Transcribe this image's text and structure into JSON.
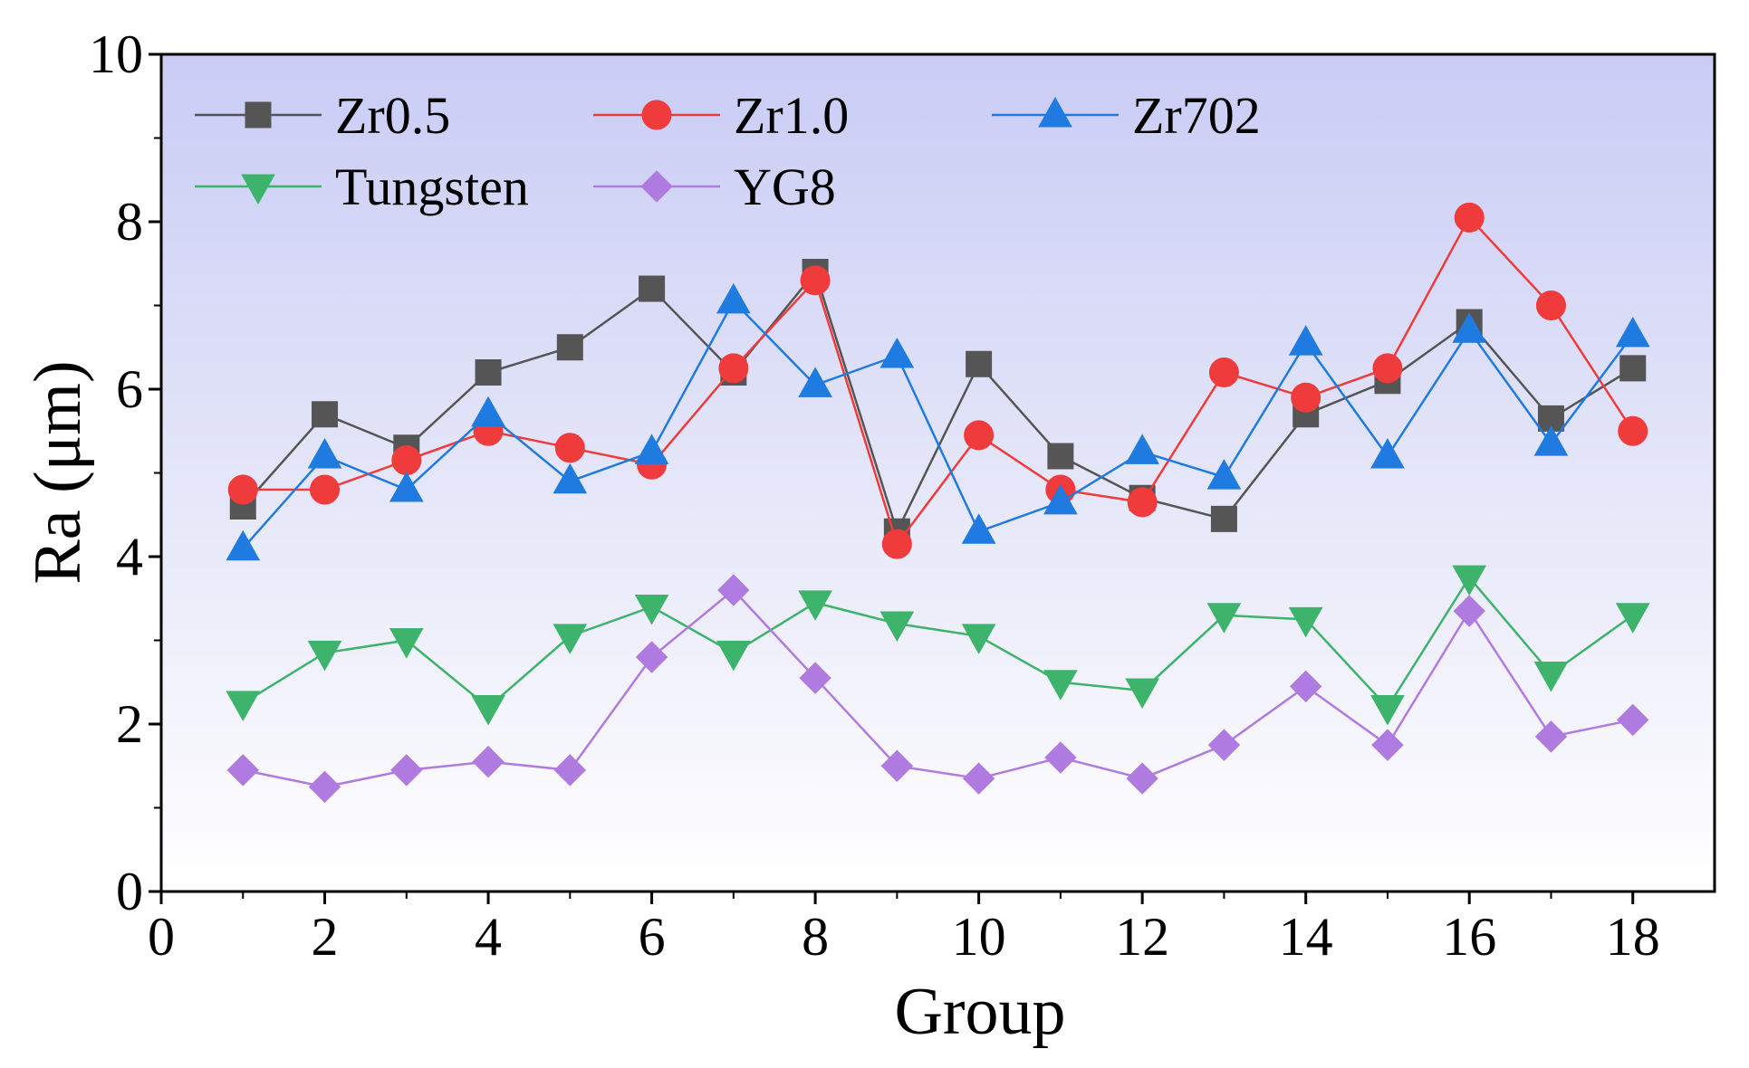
{
  "chart_data": {
    "type": "line",
    "title": "",
    "xlabel": "Group",
    "ylabel": "Ra (μm)",
    "xlim": [
      0,
      19
    ],
    "ylim": [
      0,
      10
    ],
    "xticks": [
      0,
      2,
      4,
      6,
      8,
      10,
      12,
      14,
      16,
      18
    ],
    "yticks": [
      0,
      2,
      4,
      6,
      8,
      10
    ],
    "grid": false,
    "legend_position": "top-left",
    "x": [
      1,
      2,
      3,
      4,
      5,
      6,
      7,
      8,
      9,
      10,
      11,
      12,
      13,
      14,
      15,
      16,
      17,
      18
    ],
    "series": [
      {
        "name": "Zr0.5",
        "marker": "square",
        "color": "#555555",
        "values": [
          4.6,
          5.7,
          5.3,
          6.2,
          6.5,
          7.2,
          6.2,
          7.4,
          4.3,
          6.3,
          5.2,
          4.7,
          4.45,
          5.7,
          6.1,
          6.8,
          5.65,
          6.25
        ]
      },
      {
        "name": "Zr1.0",
        "marker": "circle",
        "color": "#ef3b3b",
        "values": [
          4.8,
          4.8,
          5.15,
          5.5,
          5.3,
          5.1,
          6.25,
          7.3,
          4.15,
          5.45,
          4.8,
          4.65,
          6.2,
          5.9,
          6.25,
          8.05,
          7.0,
          5.5
        ]
      },
      {
        "name": "Zr702",
        "marker": "triangle-up",
        "color": "#1f7be0",
        "values": [
          4.1,
          5.2,
          4.8,
          5.7,
          4.9,
          5.25,
          7.05,
          6.05,
          6.4,
          4.3,
          4.65,
          5.25,
          4.95,
          6.55,
          5.2,
          6.7,
          5.35,
          6.65
        ]
      },
      {
        "name": "Tungsten",
        "marker": "triangle-down",
        "color": "#3db36b",
        "values": [
          2.25,
          2.85,
          3.0,
          2.2,
          3.05,
          3.4,
          2.85,
          3.45,
          3.2,
          3.05,
          2.5,
          2.4,
          3.3,
          3.25,
          2.2,
          3.75,
          2.6,
          3.3
        ]
      },
      {
        "name": "YG8",
        "marker": "diamond",
        "color": "#b07be0",
        "values": [
          1.45,
          1.25,
          1.45,
          1.55,
          1.45,
          2.8,
          3.6,
          2.55,
          1.5,
          1.35,
          1.6,
          1.35,
          1.75,
          2.45,
          1.75,
          3.35,
          1.85,
          2.05
        ]
      }
    ]
  }
}
